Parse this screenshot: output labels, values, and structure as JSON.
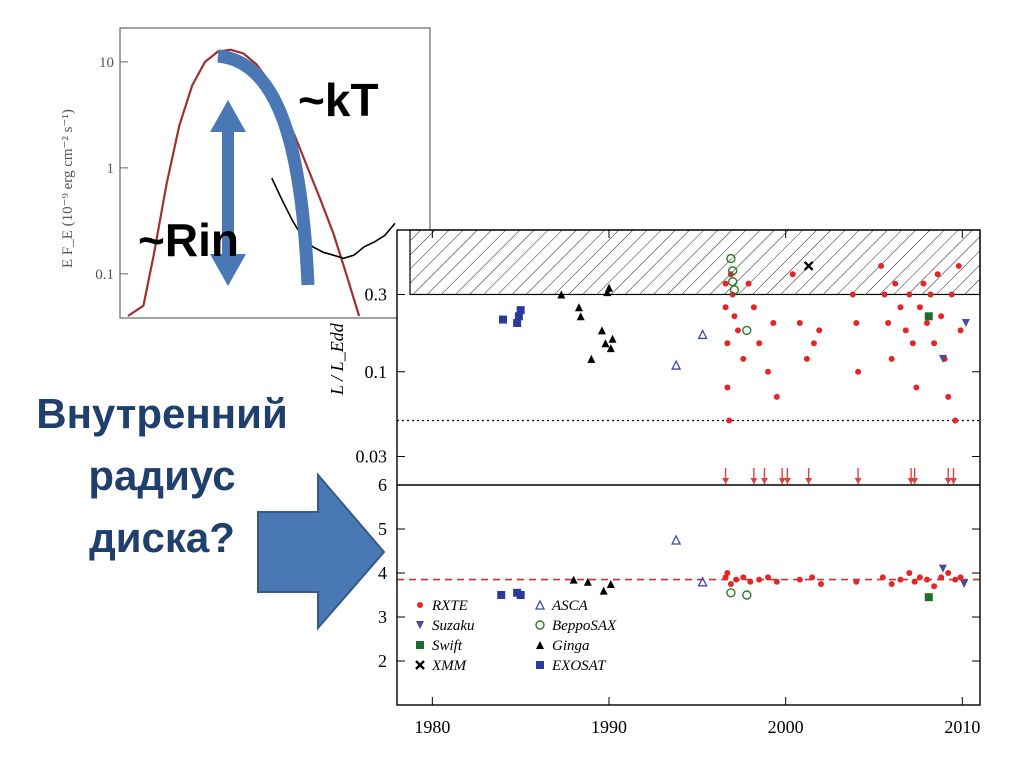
{
  "slide": {
    "label_kT": "~kT",
    "label_Rin": "~Rin",
    "question_lines": [
      "Внутренний",
      "радиус",
      "диска?"
    ],
    "colors": {
      "question": "#1f3f6d",
      "arrow": "#4a78b5",
      "arrow_border": "#35598a"
    }
  },
  "chart_data": [
    {
      "type": "line",
      "title": "",
      "ylabel": "E F_E (10⁻⁹ erg cm⁻² s⁻¹)",
      "xlabel": "",
      "yscale": "log",
      "ylim": [
        0.04,
        20
      ],
      "ytick_labels": [
        "10",
        "1",
        "0.1"
      ],
      "series": [
        {
          "values": [
            [
              0,
              0.04
            ],
            [
              0.6,
              0.05
            ],
            [
              1.0,
              0.15
            ],
            [
              1.5,
              0.7
            ],
            [
              2.0,
              2.5
            ],
            [
              2.5,
              6.0
            ],
            [
              3.0,
              10.0
            ],
            [
              3.5,
              12.5
            ],
            [
              4.0,
              13.0
            ],
            [
              4.5,
              12.0
            ],
            [
              5.0,
              9.5
            ],
            [
              5.5,
              6.5
            ],
            [
              6.0,
              3.8
            ],
            [
              6.5,
              2.0
            ],
            [
              7.0,
              1.0
            ],
            [
              7.5,
              0.5
            ],
            [
              8.0,
              0.24
            ],
            [
              8.5,
              0.1
            ],
            [
              9.0,
              0.04
            ]
          ]
        },
        {
          "values": [
            [
              5.6,
              0.8
            ],
            [
              6.0,
              0.5
            ],
            [
              6.4,
              0.32
            ],
            [
              6.8,
              0.22
            ],
            [
              7.2,
              0.18
            ],
            [
              7.6,
              0.16
            ],
            [
              8.0,
              0.15
            ],
            [
              8.4,
              0.14
            ],
            [
              8.8,
              0.15
            ],
            [
              9.2,
              0.18
            ],
            [
              9.6,
              0.2
            ],
            [
              10.0,
              0.23
            ],
            [
              10.4,
              0.3
            ]
          ]
        }
      ]
    },
    {
      "type": "scatter",
      "ylabel": "L / L_Edd",
      "xlabel": "",
      "yscale": "log",
      "ylim": [
        0.02,
        0.75
      ],
      "xlim": [
        1978,
        2011
      ],
      "yticks": [
        0.03,
        0.1,
        0.3
      ],
      "ytick_labels": [
        "0.03",
        "0.1",
        "0.3"
      ],
      "hatched_region": [
        0.3,
        0.75
      ],
      "reference_line": 0.05,
      "series": [
        {
          "name": "RXTE",
          "values": [
            [
              1996.6,
              0.35
            ],
            [
              1996.6,
              0.25
            ],
            [
              1996.7,
              0.15
            ],
            [
              1996.7,
              0.08
            ],
            [
              1996.8,
              0.05
            ],
            [
              1996.9,
              0.4
            ],
            [
              1997.0,
              0.3
            ],
            [
              1997.1,
              0.22
            ],
            [
              1997.3,
              0.18
            ],
            [
              1997.6,
              0.12
            ],
            [
              1997.9,
              0.35
            ],
            [
              1998.2,
              0.25
            ],
            [
              1998.5,
              0.15
            ],
            [
              1999.0,
              0.1
            ],
            [
              1999.3,
              0.2
            ],
            [
              1999.5,
              0.07
            ],
            [
              2000.4,
              0.4
            ],
            [
              2000.8,
              0.2
            ],
            [
              2001.2,
              0.12
            ],
            [
              2001.6,
              0.15
            ],
            [
              2001.9,
              0.18
            ],
            [
              2003.8,
              0.3
            ],
            [
              2004.0,
              0.2
            ],
            [
              2004.1,
              0.1
            ],
            [
              2005.4,
              0.45
            ],
            [
              2005.6,
              0.3
            ],
            [
              2005.8,
              0.2
            ],
            [
              2006.0,
              0.12
            ],
            [
              2006.2,
              0.35
            ],
            [
              2006.5,
              0.25
            ],
            [
              2006.8,
              0.18
            ],
            [
              2007.0,
              0.3
            ],
            [
              2007.2,
              0.15
            ],
            [
              2007.4,
              0.08
            ],
            [
              2007.6,
              0.25
            ],
            [
              2007.8,
              0.35
            ],
            [
              2008.0,
              0.2
            ],
            [
              2008.2,
              0.3
            ],
            [
              2008.4,
              0.15
            ],
            [
              2008.6,
              0.4
            ],
            [
              2008.8,
              0.22
            ],
            [
              2009.0,
              0.12
            ],
            [
              2009.2,
              0.07
            ],
            [
              2009.4,
              0.3
            ],
            [
              2009.6,
              0.05
            ],
            [
              2009.8,
              0.45
            ],
            [
              2009.9,
              0.18
            ]
          ]
        },
        {
          "name": "Suzaku",
          "values": [
            [
              2008.9,
              0.12
            ],
            [
              2010.2,
              0.2
            ]
          ]
        },
        {
          "name": "Swift",
          "values": [
            [
              2008.1,
              0.22
            ]
          ]
        },
        {
          "name": "XMM",
          "values": [
            [
              2001.3,
              0.45
            ]
          ]
        },
        {
          "name": "ASCA",
          "values": [
            [
              1993.8,
              0.11
            ],
            [
              1995.3,
              0.17
            ]
          ]
        },
        {
          "name": "BeppoSAX",
          "values": [
            [
              1996.9,
              0.5
            ],
            [
              1997.0,
              0.42
            ],
            [
              1997.0,
              0.36
            ],
            [
              1997.1,
              0.32
            ],
            [
              1997.8,
              0.18
            ]
          ]
        },
        {
          "name": "Ginga",
          "values": [
            [
              1987.3,
              0.3
            ],
            [
              1988.3,
              0.25
            ],
            [
              1988.4,
              0.22
            ],
            [
              1989.0,
              0.12
            ],
            [
              1989.6,
              0.18
            ],
            [
              1989.8,
              0.15
            ],
            [
              1989.9,
              0.31
            ],
            [
              1990.0,
              0.33
            ],
            [
              1990.1,
              0.14
            ],
            [
              1990.2,
              0.16
            ]
          ]
        },
        {
          "name": "EXOSAT",
          "values": [
            [
              1984.0,
              0.21
            ],
            [
              1984.8,
              0.2
            ],
            [
              1984.9,
              0.22
            ],
            [
              1985.0,
              0.24
            ]
          ]
        }
      ],
      "upper_limit_years": [
        1996.6,
        1998.2,
        1998.8,
        1999.8,
        2000.1,
        2001.3,
        2004.1,
        2007.1,
        2007.3,
        2009.2,
        2009.5
      ]
    },
    {
      "type": "scatter",
      "ylabel": "",
      "xlabel": "",
      "ylim": [
        1,
        6
      ],
      "xlim": [
        1978,
        2011
      ],
      "yticks": [
        2,
        3,
        4,
        5,
        6
      ],
      "ytick_labels": [
        "2",
        "3",
        "4",
        "5",
        "6"
      ],
      "xticks": [
        1980,
        1990,
        2000,
        2010
      ],
      "xtick_labels": [
        "1980",
        "1990",
        "2000",
        "2010"
      ],
      "reference_line": 3.85,
      "series": [
        {
          "name": "RXTE",
          "values": [
            [
              1996.6,
              3.9
            ],
            [
              1996.7,
              4.0
            ],
            [
              1996.9,
              3.75
            ],
            [
              1997.2,
              3.85
            ],
            [
              1997.6,
              3.9
            ],
            [
              1998.0,
              3.8
            ],
            [
              1998.5,
              3.85
            ],
            [
              1999.0,
              3.9
            ],
            [
              1999.5,
              3.8
            ],
            [
              2000.8,
              3.85
            ],
            [
              2001.5,
              3.9
            ],
            [
              2002.0,
              3.75
            ],
            [
              2004.0,
              3.8
            ],
            [
              2005.5,
              3.9
            ],
            [
              2006.0,
              3.75
            ],
            [
              2006.5,
              3.85
            ],
            [
              2007.0,
              4.0
            ],
            [
              2007.3,
              3.8
            ],
            [
              2007.6,
              3.9
            ],
            [
              2008.0,
              3.85
            ],
            [
              2008.4,
              3.7
            ],
            [
              2008.8,
              3.9
            ],
            [
              2009.2,
              4.0
            ],
            [
              2009.6,
              3.85
            ],
            [
              2009.9,
              3.9
            ]
          ]
        },
        {
          "name": "Suzaku",
          "values": [
            [
              2008.9,
              4.1
            ],
            [
              2010.1,
              3.75
            ]
          ]
        },
        {
          "name": "Swift",
          "values": [
            [
              2008.1,
              3.45
            ]
          ]
        },
        {
          "name": "ASCA",
          "values": [
            [
              1993.8,
              4.75
            ],
            [
              1995.3,
              3.8
            ]
          ]
        },
        {
          "name": "BeppoSAX",
          "values": [
            [
              1996.9,
              3.55
            ],
            [
              1997.8,
              3.5
            ]
          ]
        },
        {
          "name": "Ginga",
          "values": [
            [
              1988.0,
              3.85
            ],
            [
              1988.8,
              3.8
            ],
            [
              1989.7,
              3.6
            ],
            [
              1990.1,
              3.75
            ]
          ]
        },
        {
          "name": "EXOSAT",
          "values": [
            [
              1983.9,
              3.5
            ],
            [
              1984.8,
              3.55
            ],
            [
              1985.0,
              3.5
            ]
          ]
        }
      ],
      "legend": {
        "placement": "bottom-left",
        "entries": [
          {
            "name": "RXTE",
            "color": "#e32626",
            "marker": "dot"
          },
          {
            "name": "Suzaku",
            "color": "#4a4a9a",
            "marker": "triangle-down"
          },
          {
            "name": "Swift",
            "color": "#1e6b2a",
            "marker": "square"
          },
          {
            "name": "XMM",
            "color": "#000000",
            "marker": "cross"
          },
          {
            "name": "ASCA",
            "color": "#3a4aa8",
            "marker": "triangle-open"
          },
          {
            "name": "BeppoSAX",
            "color": "#2a7a2a",
            "marker": "circle-open"
          },
          {
            "name": "Ginga",
            "color": "#000000",
            "marker": "triangle"
          },
          {
            "name": "EXOSAT",
            "color": "#2a3a9a",
            "marker": "square"
          }
        ]
      }
    }
  ]
}
